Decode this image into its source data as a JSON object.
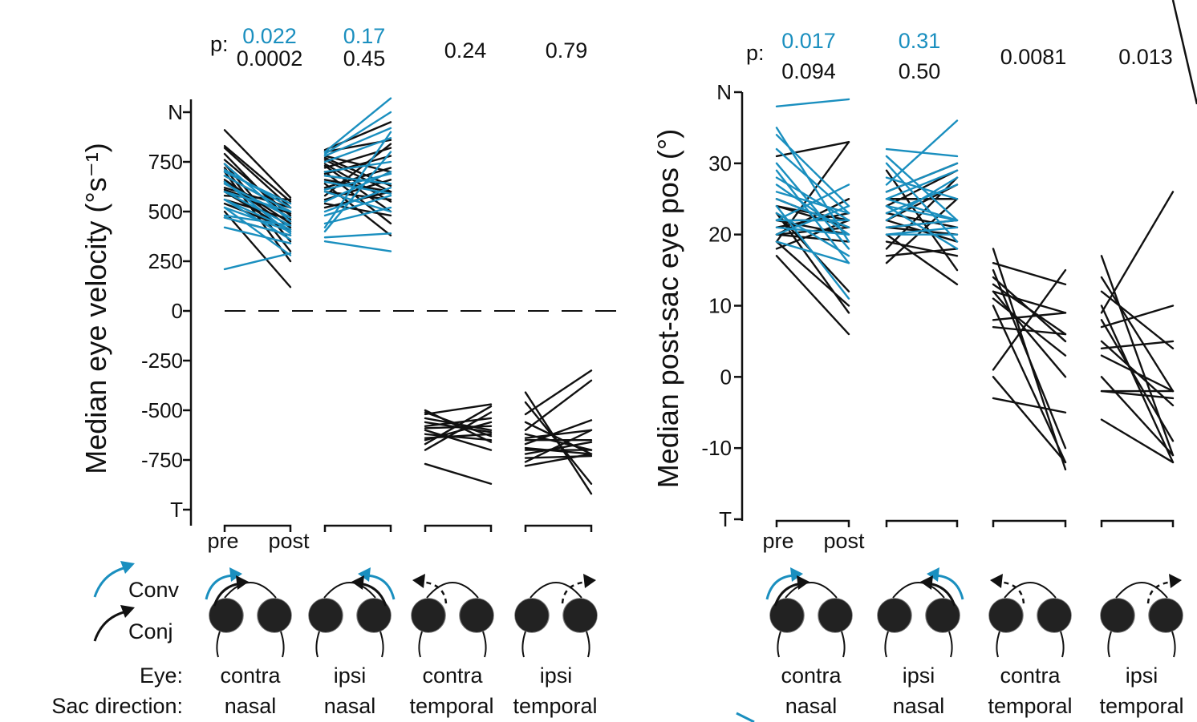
{
  "colors": {
    "conv": "#1a8fbf",
    "conj": "#111111"
  },
  "legend": {
    "conv": "Conv",
    "conj": "Conj"
  },
  "row_labels": {
    "eye": "Eye:",
    "sac_direction": "Sac direction:"
  },
  "conditions": [
    {
      "eye": "contra",
      "direction": "nasal"
    },
    {
      "eye": "ipsi",
      "direction": "nasal"
    },
    {
      "eye": "contra",
      "direction": "temporal"
    },
    {
      "eye": "ipsi",
      "direction": "temporal"
    }
  ],
  "chart_data": [
    {
      "type": "line",
      "ylabel": "Median eye velocity (°s⁻¹)",
      "xlabel": "",
      "x_tick_labels": [
        "pre",
        "post"
      ],
      "ylim": [
        -1000,
        1000
      ],
      "y_ticks": [
        {
          "value": 1000,
          "label": "N"
        },
        {
          "value": 750,
          "label": "750"
        },
        {
          "value": 500,
          "label": "500"
        },
        {
          "value": 250,
          "label": "250"
        },
        {
          "value": 0,
          "label": "0"
        },
        {
          "value": -250,
          "label": "-250"
        },
        {
          "value": -500,
          "label": "-500"
        },
        {
          "value": -750,
          "label": "-750"
        },
        {
          "value": -1000,
          "label": "T"
        }
      ],
      "zero_dashed_line": true,
      "p_prefix": "p:",
      "groups": [
        {
          "p_conv": "0.022",
          "p_conj": "0.0002",
          "conv": [
            [
              210,
              290
            ],
            [
              420,
              340
            ],
            [
              470,
              380
            ],
            [
              520,
              400
            ],
            [
              560,
              410
            ],
            [
              600,
              430
            ],
            [
              640,
              470
            ],
            [
              680,
              500
            ],
            [
              710,
              520
            ],
            [
              700,
              540
            ],
            [
              650,
              390
            ],
            [
              560,
              360
            ],
            [
              480,
              430
            ],
            [
              520,
              280
            ],
            [
              600,
              500
            ],
            [
              740,
              450
            ]
          ],
          "conj": [
            [
              910,
              570
            ],
            [
              830,
              550
            ],
            [
              820,
              520
            ],
            [
              790,
              450
            ],
            [
              760,
              480
            ],
            [
              720,
              300
            ],
            [
              700,
              250
            ],
            [
              680,
              500
            ],
            [
              660,
              440
            ],
            [
              640,
              470
            ],
            [
              620,
              520
            ],
            [
              600,
              400
            ],
            [
              560,
              460
            ],
            [
              540,
              410
            ],
            [
              500,
              120
            ],
            [
              470,
              380
            ],
            [
              580,
              560
            ],
            [
              650,
              420
            ],
            [
              610,
              490
            ],
            [
              740,
              350
            ]
          ]
        },
        {
          "p_conv": "0.17",
          "p_conj": "0.45",
          "conv": [
            [
              800,
              1070
            ],
            [
              790,
              1000
            ],
            [
              780,
              920
            ],
            [
              750,
              870
            ],
            [
              700,
              750
            ],
            [
              680,
              640
            ],
            [
              650,
              590
            ],
            [
              600,
              500
            ],
            [
              550,
              700
            ],
            [
              500,
              620
            ],
            [
              480,
              580
            ],
            [
              440,
              520
            ],
            [
              400,
              800
            ],
            [
              370,
              390
            ],
            [
              350,
              300
            ],
            [
              420,
              900
            ],
            [
              610,
              690
            ]
          ],
          "conj": [
            [
              810,
              950
            ],
            [
              800,
              860
            ],
            [
              780,
              700
            ],
            [
              770,
              630
            ],
            [
              760,
              600
            ],
            [
              740,
              550
            ],
            [
              730,
              500
            ],
            [
              720,
              820
            ],
            [
              700,
              440
            ],
            [
              690,
              780
            ],
            [
              680,
              640
            ],
            [
              660,
              600
            ],
            [
              640,
              380
            ],
            [
              620,
              720
            ],
            [
              600,
              560
            ],
            [
              580,
              840
            ],
            [
              560,
              660
            ],
            [
              540,
              480
            ],
            [
              520,
              600
            ]
          ]
        },
        {
          "p_conj": "0.24",
          "conv": [],
          "conj": [
            [
              -770,
              -870
            ],
            [
              -700,
              -510
            ],
            [
              -670,
              -480
            ],
            [
              -650,
              -560
            ],
            [
              -640,
              -620
            ],
            [
              -620,
              -650
            ],
            [
              -600,
              -700
            ],
            [
              -590,
              -580
            ],
            [
              -580,
              -540
            ],
            [
              -560,
              -610
            ],
            [
              -540,
              -600
            ],
            [
              -520,
              -470
            ],
            [
              -500,
              -660
            ],
            [
              -510,
              -630
            ]
          ]
        },
        {
          "p_conj": "0.79",
          "conv": [],
          "conj": [
            [
              -410,
              -920
            ],
            [
              -460,
              -870
            ],
            [
              -520,
              -300
            ],
            [
              -560,
              -720
            ],
            [
              -600,
              -350
            ],
            [
              -620,
              -700
            ],
            [
              -640,
              -600
            ],
            [
              -650,
              -650
            ],
            [
              -670,
              -550
            ],
            [
              -690,
              -720
            ],
            [
              -700,
              -700
            ],
            [
              -720,
              -660
            ],
            [
              -740,
              -730
            ],
            [
              -760,
              -600
            ],
            [
              -780,
              -720
            ]
          ]
        }
      ]
    },
    {
      "type": "line",
      "ylabel": "Median post-sac eye pos (°)",
      "xlabel": "",
      "x_tick_labels": [
        "pre",
        "post"
      ],
      "ylim": [
        -20,
        40
      ],
      "y_ticks": [
        {
          "value": 40,
          "label": "N"
        },
        {
          "value": 30,
          "label": "30"
        },
        {
          "value": 20,
          "label": "20"
        },
        {
          "value": 10,
          "label": "10"
        },
        {
          "value": 0,
          "label": "0"
        },
        {
          "value": -10,
          "label": "-10"
        },
        {
          "value": -20,
          "label": "T"
        }
      ],
      "zero_dashed_line": false,
      "p_prefix": "p:",
      "groups": [
        {
          "p_conv": "0.017",
          "p_conj": "0.094",
          "conv": [
            [
              38,
              39
            ],
            [
              35,
              19
            ],
            [
              34,
              24
            ],
            [
              32,
              23
            ],
            [
              30,
              18
            ],
            [
              29,
              16
            ],
            [
              28,
              22
            ],
            [
              27,
              20
            ],
            [
              26,
              23
            ],
            [
              25,
              21
            ],
            [
              24,
              11
            ],
            [
              23,
              17
            ],
            [
              22,
              27
            ],
            [
              21,
              20
            ],
            [
              20,
              24
            ],
            [
              19,
              16
            ],
            [
              22,
              22
            ]
          ],
          "conj": [
            [
              31,
              33
            ],
            [
              25,
              21
            ],
            [
              24,
              22
            ],
            [
              23,
              12
            ],
            [
              23,
              9
            ],
            [
              22,
              20
            ],
            [
              22,
              22
            ],
            [
              21,
              23
            ],
            [
              20,
              25
            ],
            [
              20,
              19
            ],
            [
              20,
              21
            ],
            [
              19,
              10
            ],
            [
              18,
              22
            ],
            [
              17,
              6
            ],
            [
              19,
              33
            ],
            [
              24,
              21
            ]
          ]
        },
        {
          "p_conv": "0.31",
          "p_conj": "0.50",
          "conv": [
            [
              32,
              31
            ],
            [
              31,
              22
            ],
            [
              30,
              19
            ],
            [
              28,
              25
            ],
            [
              27,
              36
            ],
            [
              26,
              30
            ],
            [
              25,
              29
            ],
            [
              24,
              22
            ],
            [
              24,
              18
            ],
            [
              23,
              27
            ],
            [
              22,
              28
            ],
            [
              21,
              22
            ],
            [
              20,
              20
            ],
            [
              20,
              21
            ],
            [
              25,
              22
            ]
          ],
          "conj": [
            [
              29,
              15
            ],
            [
              26,
              30
            ],
            [
              25,
              25
            ],
            [
              24,
              29
            ],
            [
              23,
              21
            ],
            [
              22,
              19
            ],
            [
              21,
              22
            ],
            [
              21,
              20
            ],
            [
              20,
              13
            ],
            [
              19,
              17
            ],
            [
              18,
              28
            ],
            [
              17,
              18
            ],
            [
              16,
              25
            ],
            [
              22,
              27
            ]
          ]
        },
        {
          "p_conj": "0.0081",
          "conv": [],
          "conj": [
            [
              18,
              -13
            ],
            [
              16,
              13
            ],
            [
              15,
              -10
            ],
            [
              14,
              5
            ],
            [
              13,
              6
            ],
            [
              12,
              9
            ],
            [
              11,
              3
            ],
            [
              10,
              -12
            ],
            [
              8,
              9
            ],
            [
              7,
              6
            ],
            [
              1,
              15
            ],
            [
              0,
              -12
            ],
            [
              -3,
              -5
            ],
            [
              12,
              0
            ]
          ]
        },
        {
          "p_conj": "0.013",
          "conv": [],
          "conj": [
            [
              17,
              -11
            ],
            [
              14,
              -2
            ],
            [
              12,
              4
            ],
            [
              10,
              -12
            ],
            [
              9,
              26
            ],
            [
              8,
              -9
            ],
            [
              7,
              10
            ],
            [
              5,
              -4
            ],
            [
              4,
              5
            ],
            [
              3,
              -2
            ],
            [
              0,
              -11
            ],
            [
              -2,
              -3
            ],
            [
              -6,
              -12
            ],
            [
              -2,
              -2
            ]
          ]
        }
      ]
    }
  ]
}
